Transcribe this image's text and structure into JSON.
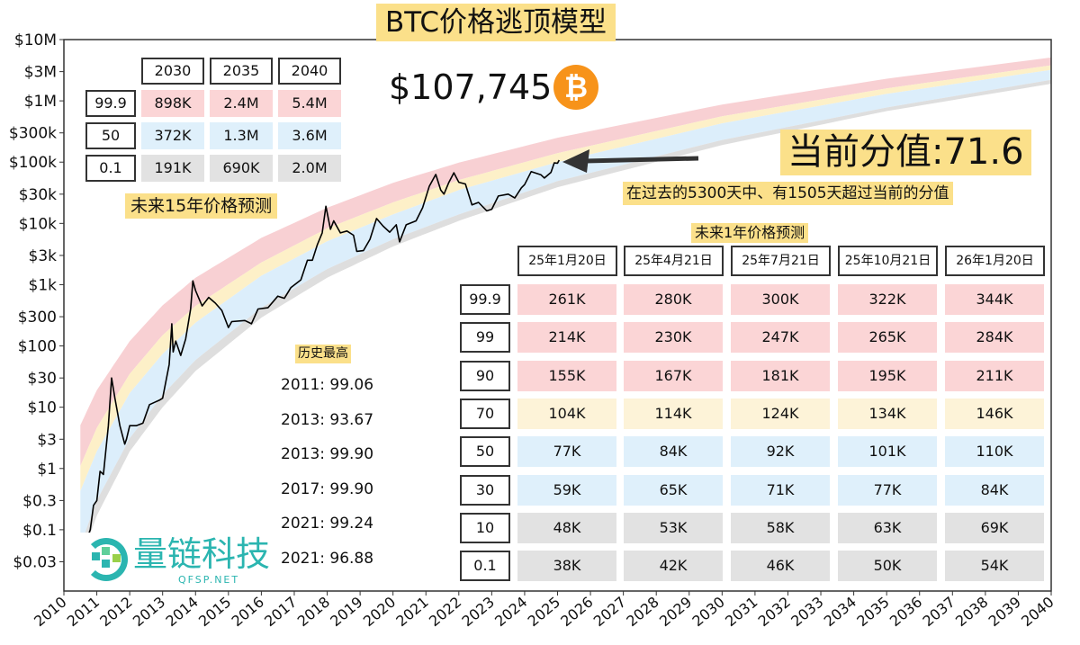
{
  "header": {
    "title": "BTC价格逃顶模型",
    "current_price": "$107,745",
    "btc_icon": "bitcoin-icon",
    "btc_symbol": "₿"
  },
  "score": {
    "label": "当前分值:71.6",
    "note": "在过去的5300天中、有1505天超过当前的分值"
  },
  "long_term": {
    "title": "未来15年价格预测",
    "columns": [
      "2030",
      "2035",
      "2040"
    ],
    "rows": [
      {
        "label": "99.9",
        "color": "red",
        "values": [
          "898K",
          "2.4M",
          "5.4M"
        ]
      },
      {
        "label": "50",
        "color": "blue",
        "values": [
          "372K",
          "1.3M",
          "3.6M"
        ]
      },
      {
        "label": "0.1",
        "color": "gray",
        "values": [
          "191K",
          "690K",
          "2.0M"
        ]
      }
    ]
  },
  "short_term": {
    "title": "未来1年价格预测",
    "columns": [
      "25年1月20日",
      "25年4月21日",
      "25年7月21日",
      "25年10月21日",
      "26年1月20日"
    ],
    "rows": [
      {
        "label": "99.9",
        "color": "red",
        "values": [
          "261K",
          "280K",
          "300K",
          "322K",
          "344K"
        ]
      },
      {
        "label": "99",
        "color": "red",
        "values": [
          "214K",
          "230K",
          "247K",
          "265K",
          "284K"
        ]
      },
      {
        "label": "90",
        "color": "red",
        "values": [
          "155K",
          "167K",
          "181K",
          "195K",
          "211K"
        ]
      },
      {
        "label": "70",
        "color": "yellow",
        "values": [
          "104K",
          "114K",
          "124K",
          "134K",
          "146K"
        ]
      },
      {
        "label": "50",
        "color": "blue",
        "values": [
          "77K",
          "84K",
          "92K",
          "101K",
          "110K"
        ]
      },
      {
        "label": "30",
        "color": "blue",
        "values": [
          "59K",
          "65K",
          "71K",
          "77K",
          "84K"
        ]
      },
      {
        "label": "10",
        "color": "gray",
        "values": [
          "48K",
          "53K",
          "58K",
          "63K",
          "69K"
        ]
      },
      {
        "label": "0.1",
        "color": "gray",
        "values": [
          "38K",
          "42K",
          "46K",
          "50K",
          "54K"
        ]
      }
    ]
  },
  "ath": {
    "title": "历史最高",
    "items": [
      "2011: 99.06",
      "2013: 93.67",
      "2013: 99.90",
      "2017: 99.90",
      "2021: 99.24",
      "2021: 96.88"
    ]
  },
  "logo": {
    "name": "量链科技",
    "url": "QFSP.NET"
  },
  "colors": {
    "red": "#f8d0d3",
    "yellow": "#fdf0c8",
    "blue": "#dceefb",
    "gray": "#dedede",
    "highlight": "#fbe08a",
    "bitcoin": "#f7931a",
    "logo": "#2bb5b0"
  },
  "chart_data": {
    "type": "line",
    "yscale": "log",
    "ylim": [
      0.01,
      10000000
    ],
    "xlim": [
      2010,
      2040
    ],
    "grid": false,
    "y_ticks": [
      {
        "value": 10000000,
        "label": "$10M"
      },
      {
        "value": 3000000,
        "label": "$3M"
      },
      {
        "value": 1000000,
        "label": "$1M"
      },
      {
        "value": 300000,
        "label": "$300k"
      },
      {
        "value": 100000,
        "label": "$100k"
      },
      {
        "value": 30000,
        "label": "$30k"
      },
      {
        "value": 10000,
        "label": "$10k"
      },
      {
        "value": 3000,
        "label": "$3k"
      },
      {
        "value": 1000,
        "label": "$1k"
      },
      {
        "value": 300,
        "label": "$300"
      },
      {
        "value": 100,
        "label": "$100"
      },
      {
        "value": 30,
        "label": "$30"
      },
      {
        "value": 10,
        "label": "$10"
      },
      {
        "value": 3,
        "label": "$3"
      },
      {
        "value": 1,
        "label": "$1"
      },
      {
        "value": 0.3,
        "label": "$0.3"
      },
      {
        "value": 0.1,
        "label": "$0.1"
      },
      {
        "value": 0.03,
        "label": "$0.03"
      }
    ],
    "x_ticks": [
      "2010",
      "2011",
      "2012",
      "2013",
      "2014",
      "2015",
      "2016",
      "2017",
      "2018",
      "2019",
      "2020",
      "2021",
      "2022",
      "2023",
      "2024",
      "2025",
      "2026",
      "2027",
      "2028",
      "2029",
      "2030",
      "2031",
      "2032",
      "2033",
      "2034",
      "2035",
      "2036",
      "2037",
      "2038",
      "2039",
      "2040"
    ],
    "bands": {
      "x": [
        2010.5,
        2011,
        2012,
        2013,
        2014,
        2016,
        2018,
        2020,
        2022,
        2025,
        2030,
        2035,
        2040
      ],
      "edges": [
        [
          5.1,
          19,
          120,
          460,
          1300,
          5800,
          18000,
          46000,
          98000,
          250000,
          870000,
          2300000,
          5100000
        ],
        [
          1.1,
          4.6,
          35,
          150,
          450,
          2300,
          8300,
          22000,
          51000,
          140000,
          560000,
          1600000,
          3800000
        ],
        [
          0.43,
          1.9,
          17,
          74,
          240,
          1400,
          5100,
          14000,
          35000,
          100000,
          430000,
          1300000,
          3200000
        ],
        [
          0.055,
          0.3,
          3.1,
          16,
          59,
          420,
          1800,
          5500,
          14000,
          49000,
          230000,
          780000,
          2200000
        ],
        [
          0.03,
          0.17,
          1.9,
          10,
          39,
          290,
          1300,
          4200,
          11000,
          39000,
          190000,
          680000,
          1900000
        ]
      ],
      "fills": [
        "red",
        "yellow",
        "blue",
        "gray"
      ]
    },
    "price": {
      "x": [
        2010.55,
        2010.6,
        2010.8,
        2010.9,
        2011.0,
        2011.1,
        2011.2,
        2011.35,
        2011.45,
        2011.55,
        2011.7,
        2011.85,
        2011.9,
        2012.0,
        2012.2,
        2012.4,
        2012.6,
        2012.75,
        2012.9,
        2013.0,
        2013.2,
        2013.28,
        2013.32,
        2013.4,
        2013.55,
        2013.7,
        2013.85,
        2013.92,
        2014.0,
        2014.1,
        2014.2,
        2014.4,
        2014.6,
        2014.8,
        2015.0,
        2015.1,
        2015.5,
        2015.7,
        2015.9,
        2016.2,
        2016.5,
        2016.7,
        2016.9,
        2017.2,
        2017.4,
        2017.55,
        2017.7,
        2017.85,
        2017.96,
        2018.1,
        2018.2,
        2018.4,
        2018.6,
        2018.8,
        2018.9,
        2019.1,
        2019.3,
        2019.5,
        2019.7,
        2019.9,
        2020.1,
        2020.2,
        2020.4,
        2020.7,
        2020.9,
        2021.1,
        2021.3,
        2021.45,
        2021.55,
        2021.7,
        2021.85,
        2022.0,
        2022.2,
        2022.4,
        2022.6,
        2022.85,
        2023.0,
        2023.2,
        2023.5,
        2023.7,
        2023.9,
        2024.0,
        2024.2,
        2024.5,
        2024.6,
        2024.8,
        2024.9,
        2025.0,
        2025.05
      ],
      "y": [
        0.06,
        0.05,
        0.1,
        0.25,
        0.3,
        0.9,
        0.8,
        5,
        30,
        14,
        5,
        2.5,
        3,
        5,
        5,
        5.5,
        11,
        12,
        13,
        14,
        50,
        230,
        80,
        120,
        70,
        130,
        400,
        1150,
        800,
        600,
        450,
        620,
        500,
        380,
        200,
        250,
        260,
        230,
        400,
        420,
        650,
        600,
        900,
        1200,
        2500,
        2500,
        4500,
        7000,
        19000,
        8000,
        11000,
        7000,
        7500,
        6400,
        3500,
        3600,
        5500,
        12000,
        9000,
        7200,
        9500,
        5000,
        9500,
        11000,
        18000,
        40000,
        63000,
        35000,
        30000,
        47000,
        67000,
        47000,
        44000,
        20000,
        22000,
        16000,
        17000,
        28000,
        30000,
        26000,
        38000,
        43000,
        70000,
        62000,
        55000,
        68000,
        97000,
        96000,
        107745
      ]
    },
    "annotation": {
      "type": "arrow",
      "points_to": "current price"
    }
  }
}
